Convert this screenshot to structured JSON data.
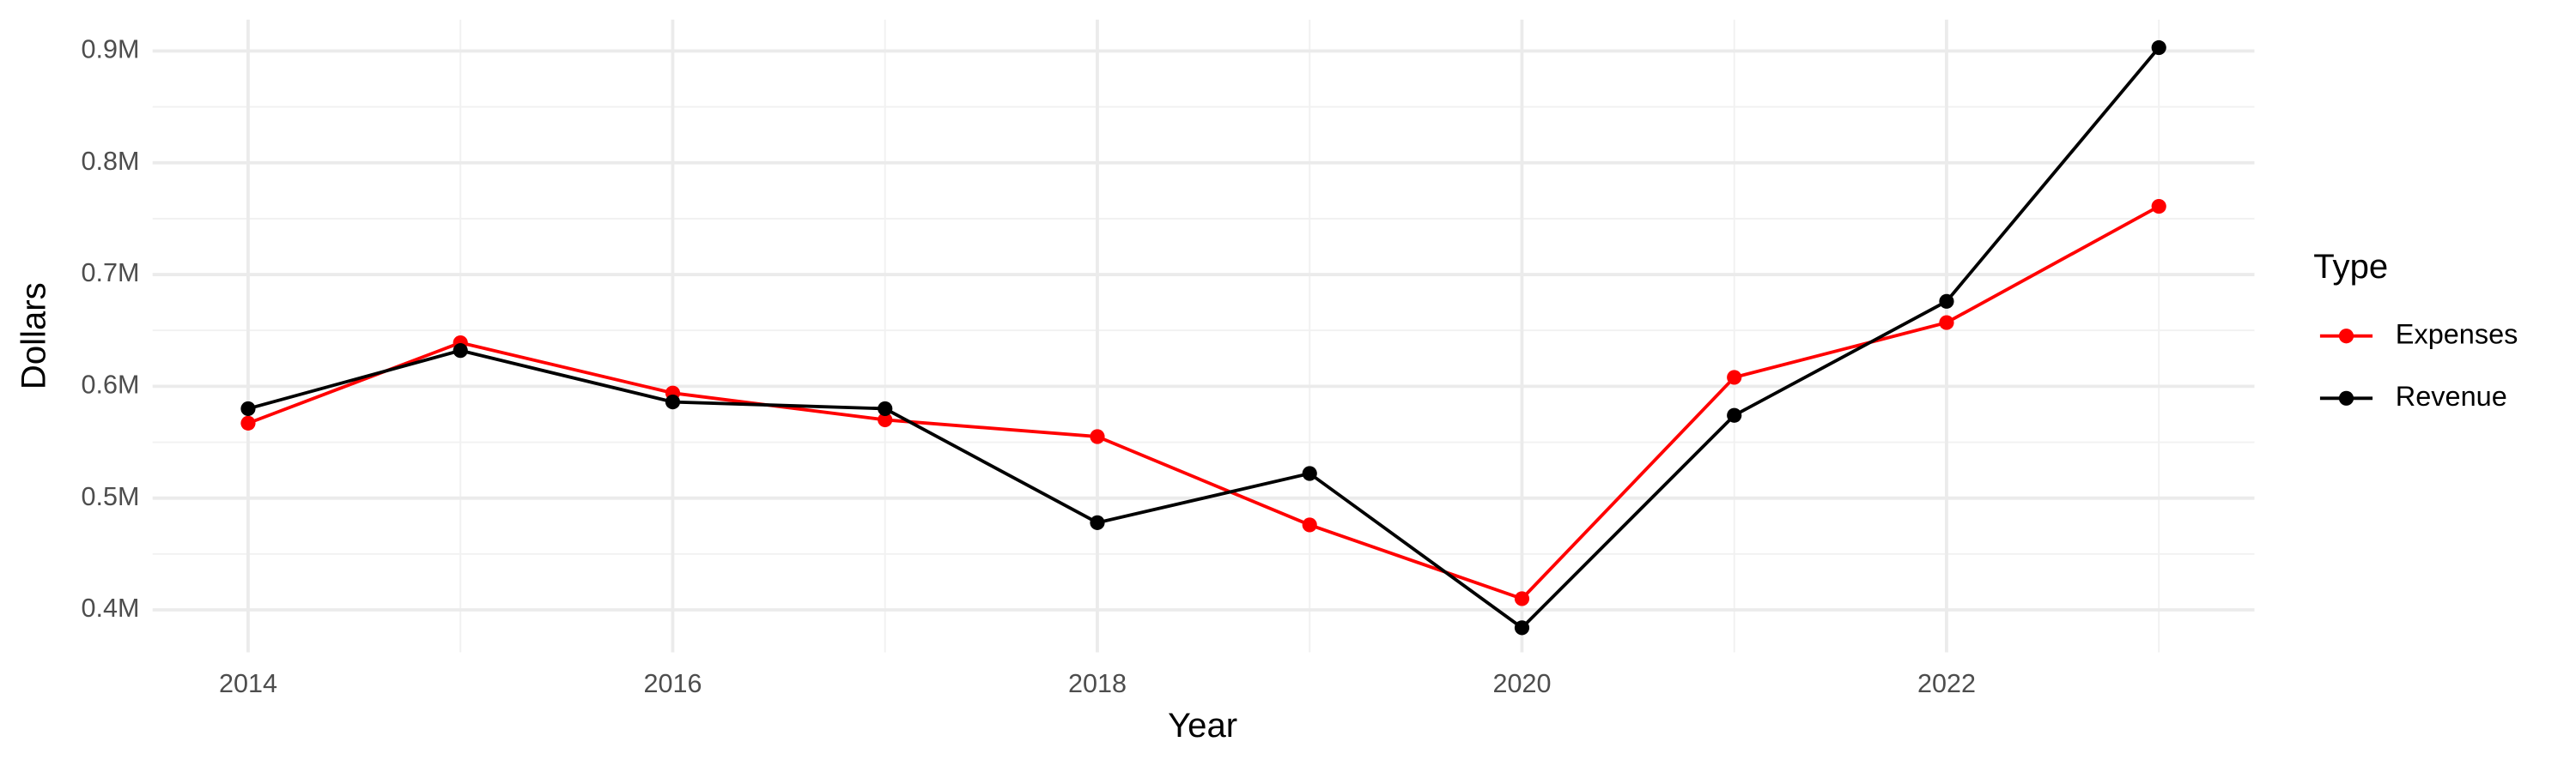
{
  "chart_data": {
    "type": "line",
    "x_label": "Year",
    "y_label": "Dollars",
    "x": [
      2014,
      2015,
      2016,
      2017,
      2018,
      2019,
      2020,
      2021,
      2022,
      2023
    ],
    "series": [
      {
        "name": "Expenses",
        "color": "#ff0000",
        "values": [
          567000,
          639000,
          594000,
          570000,
          555000,
          476000,
          410000,
          608000,
          657000,
          761000
        ]
      },
      {
        "name": "Revenue",
        "color": "#000000",
        "values": [
          580000,
          632000,
          586000,
          580000,
          478000,
          522000,
          384000,
          574000,
          676000,
          903000
        ]
      }
    ],
    "xlim": [
      2013.55,
      2023.45
    ],
    "xticks": [
      2014,
      2016,
      2018,
      2020,
      2022
    ],
    "ylim": [
      362000,
      928000
    ],
    "yticks": [
      {
        "value": 400000,
        "label": "0.4M"
      },
      {
        "value": 500000,
        "label": "0.5M"
      },
      {
        "value": 600000,
        "label": "0.6M"
      },
      {
        "value": 700000,
        "label": "0.7M"
      },
      {
        "value": 800000,
        "label": "0.8M"
      },
      {
        "value": 900000,
        "label": "0.9M"
      }
    ],
    "grid": true,
    "legend_title": "Type",
    "legend": "right"
  }
}
